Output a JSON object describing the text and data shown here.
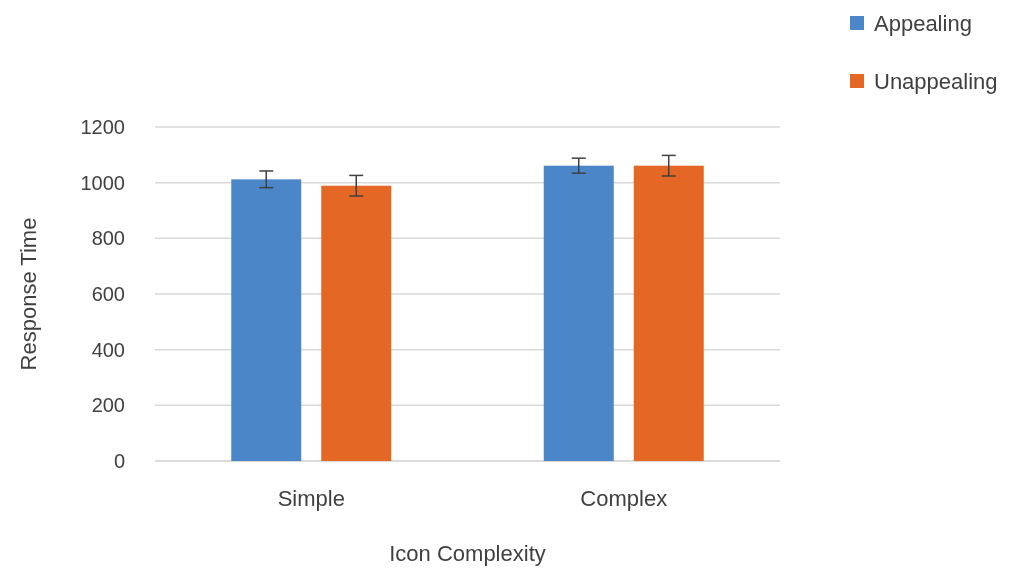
{
  "chart_data": {
    "type": "bar",
    "xlabel": "Icon Complexity",
    "ylabel": "Response Time",
    "categories": [
      "Simple",
      "Complex"
    ],
    "series": [
      {
        "name": "Appealing",
        "color": "#4a86c8",
        "values": [
          1012,
          1061
        ],
        "errors": [
          30,
          27
        ]
      },
      {
        "name": "Unappealing",
        "color": "#e46726",
        "values": [
          989,
          1061
        ],
        "errors": [
          37,
          37
        ]
      }
    ],
    "ylim": [
      0,
      1200
    ],
    "yticks": [
      0,
      200,
      400,
      600,
      800,
      1000,
      1200
    ],
    "grid": "y",
    "legend": "top right"
  }
}
